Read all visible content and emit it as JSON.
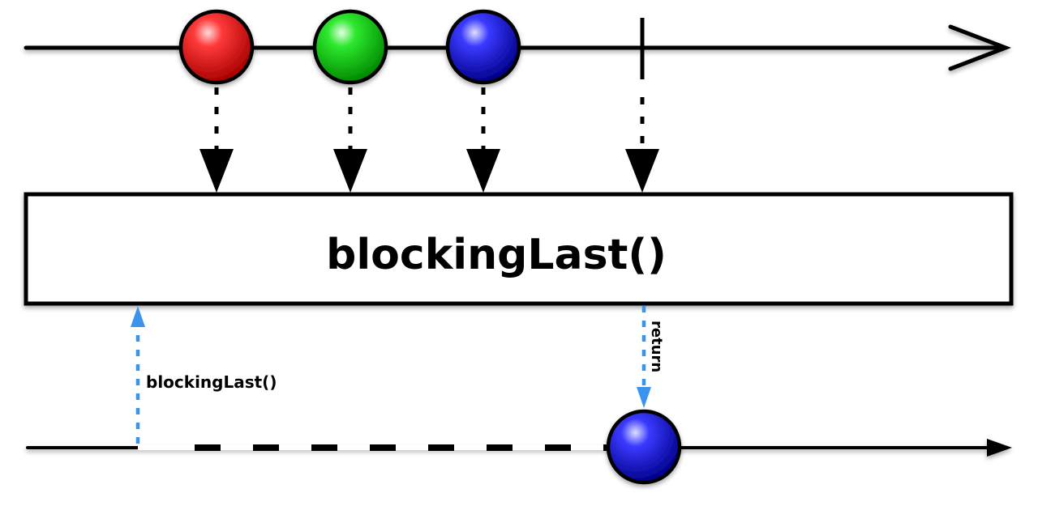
{
  "operator": {
    "label": "blockingLast()"
  },
  "call": {
    "label": "blockingLast()",
    "color": "#3b93ee"
  },
  "return": {
    "label": "return",
    "color": "#3b93ee"
  },
  "source": {
    "items": [
      {
        "color": "red"
      },
      {
        "color": "green"
      },
      {
        "color": "blue"
      }
    ],
    "completes": true
  },
  "result": {
    "item": {
      "color": "blue"
    },
    "blocked": true
  }
}
